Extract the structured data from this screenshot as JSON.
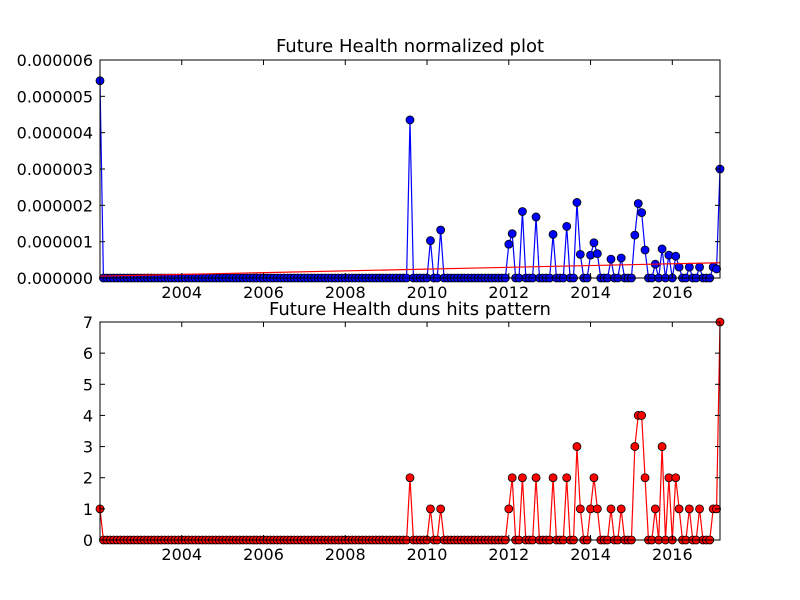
{
  "chart_data": [
    {
      "type": "line",
      "title": "Future Health normalized plot",
      "xlabel": "",
      "ylabel": "",
      "x_range": [
        "2002-01",
        "2017-03"
      ],
      "ylim": [
        0,
        6e-06
      ],
      "grid": false,
      "x_tick_labels": [
        "2004",
        "2006",
        "2008",
        "2010",
        "2012",
        "2014",
        "2016"
      ],
      "y_tick_labels": [
        "0.000000",
        "0.000001",
        "0.000002",
        "0.000003",
        "0.000004",
        "0.000005",
        "0.000006"
      ],
      "series": [
        {
          "color": "#0000ff",
          "marker": "circle",
          "points": [
            [
              "2002-01",
              5.43e-06
            ],
            [
              "2009-08",
              4.35e-06
            ],
            [
              "2010-02",
              1.03e-06
            ],
            [
              "2010-05",
              1.32e-06
            ],
            [
              "2012-01",
              9.3e-07
            ],
            [
              "2012-02",
              1.22e-06
            ],
            [
              "2012-05",
              1.83e-06
            ],
            [
              "2012-09",
              1.68e-06
            ],
            [
              "2013-02",
              1.2e-06
            ],
            [
              "2013-06",
              1.42e-06
            ],
            [
              "2013-09",
              2.08e-06
            ],
            [
              "2013-10",
              6.5e-07
            ],
            [
              "2014-01",
              6.3e-07
            ],
            [
              "2014-02",
              9.7e-07
            ],
            [
              "2014-03",
              6.7e-07
            ],
            [
              "2014-07",
              5.2e-07
            ],
            [
              "2014-10",
              5.5e-07
            ],
            [
              "2015-02",
              1.18e-06
            ],
            [
              "2015-03",
              2.05e-06
            ],
            [
              "2015-04",
              1.8e-06
            ],
            [
              "2015-05",
              7.7e-07
            ],
            [
              "2015-08",
              3.8e-07
            ],
            [
              "2015-10",
              8e-07
            ],
            [
              "2015-12",
              6.3e-07
            ],
            [
              "2016-02",
              6e-07
            ],
            [
              "2016-03",
              3e-07
            ],
            [
              "2016-06",
              3e-07
            ],
            [
              "2016-09",
              3e-07
            ],
            [
              "2017-01",
              3e-07
            ],
            [
              "2017-02",
              2.5e-07
            ],
            [
              "2017-03",
              3e-06
            ]
          ]
        },
        {
          "color": "#ff0000",
          "marker": "none",
          "points": [
            [
              "2002-01",
              5e-08
            ],
            [
              "2017-03",
              4.2e-07
            ]
          ]
        }
      ]
    },
    {
      "type": "line",
      "title": "Future Health duns hits pattern",
      "xlabel": "",
      "ylabel": "",
      "x_range": [
        "2002-01",
        "2017-03"
      ],
      "ylim": [
        0,
        7
      ],
      "grid": false,
      "x_tick_labels": [
        "2004",
        "2006",
        "2008",
        "2010",
        "2012",
        "2014",
        "2016"
      ],
      "y_tick_labels": [
        "0",
        "1",
        "2",
        "3",
        "4",
        "5",
        "6",
        "7"
      ],
      "series": [
        {
          "color": "#ff0000",
          "marker": "circle",
          "points": [
            [
              "2002-01",
              1
            ],
            [
              "2009-08",
              2
            ],
            [
              "2010-02",
              1
            ],
            [
              "2010-05",
              1
            ],
            [
              "2012-01",
              1
            ],
            [
              "2012-02",
              2
            ],
            [
              "2012-05",
              2
            ],
            [
              "2012-09",
              2
            ],
            [
              "2013-02",
              2
            ],
            [
              "2013-06",
              2
            ],
            [
              "2013-09",
              3
            ],
            [
              "2013-10",
              1
            ],
            [
              "2014-01",
              1
            ],
            [
              "2014-02",
              2
            ],
            [
              "2014-03",
              1
            ],
            [
              "2014-07",
              1
            ],
            [
              "2014-10",
              1
            ],
            [
              "2015-02",
              3
            ],
            [
              "2015-03",
              4
            ],
            [
              "2015-04",
              4
            ],
            [
              "2015-05",
              2
            ],
            [
              "2015-08",
              1
            ],
            [
              "2015-10",
              3
            ],
            [
              "2015-12",
              2
            ],
            [
              "2016-02",
              2
            ],
            [
              "2016-03",
              1
            ],
            [
              "2016-06",
              1
            ],
            [
              "2016-09",
              1
            ],
            [
              "2017-01",
              1
            ],
            [
              "2017-02",
              1
            ],
            [
              "2017-03",
              7
            ]
          ]
        }
      ]
    }
  ]
}
